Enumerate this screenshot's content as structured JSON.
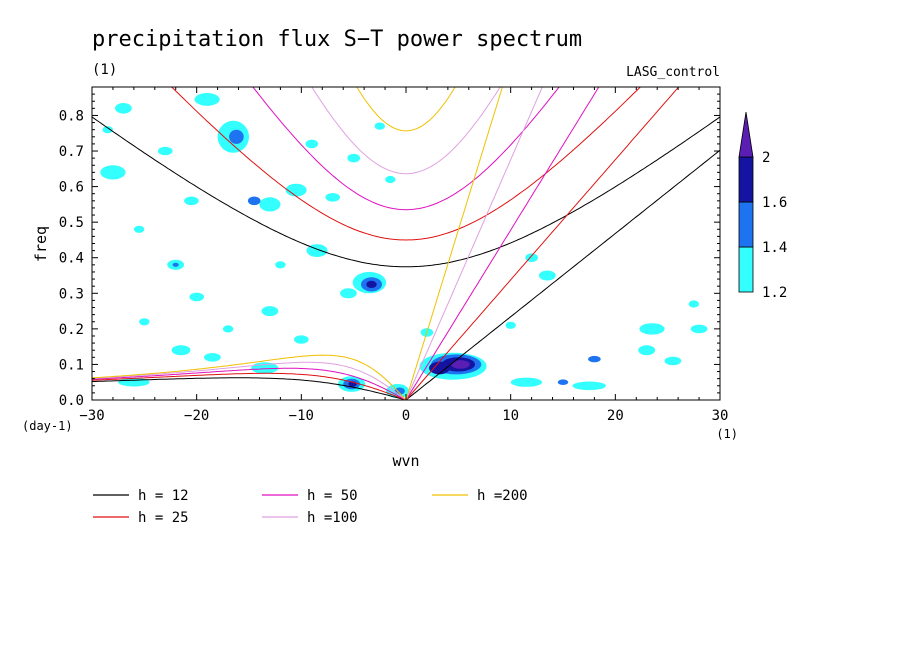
{
  "chart_data": {
    "type": "contour",
    "title": "precipitation flux S−T power spectrum",
    "subtitle_left": "(1)",
    "subtitle_right": "LASG_control",
    "xlabel": "wvn",
    "ylabel": "freq",
    "x_unit_label": "(1)",
    "y_unit_label": "(day-1)",
    "xlim": [
      -30,
      30
    ],
    "ylim": [
      0,
      0.88
    ],
    "xticks": [
      -30,
      -20,
      -10,
      0,
      10,
      20,
      30
    ],
    "xtick_labels": [
      "−30",
      "−20",
      "−10",
      "0",
      "10",
      "20",
      "30"
    ],
    "yticks": [
      0,
      0.1,
      0.2,
      0.3,
      0.4,
      0.5,
      0.6,
      0.7,
      0.8
    ],
    "ytick_labels": [
      "0.0",
      "0.1",
      "0.2",
      "0.3",
      "0.4",
      "0.5",
      "0.6",
      "0.7",
      "0.8"
    ],
    "colorbar": {
      "levels": [
        "1.2",
        "1.4",
        "1.6",
        "2"
      ],
      "colors": [
        "#33ffff",
        "#1e74f0",
        "#1414a0",
        "#5a1eb4"
      ]
    },
    "dispersion_curves": [
      {
        "label": "h = 12",
        "h": 12,
        "color": "#000000"
      },
      {
        "label": "h = 25",
        "h": 25,
        "color": "#e01010"
      },
      {
        "label": "h = 50",
        "h": 50,
        "color": "#e010c0"
      },
      {
        "label": "h =100",
        "h": 100,
        "color": "#e0a0e0"
      },
      {
        "label": "h =200",
        "h": 200,
        "color": "#f0c000"
      }
    ],
    "blobs": [
      {
        "x": 4.5,
        "y": 0.095,
        "rx": 3.2,
        "ry": 0.038,
        "level": 0
      },
      {
        "x": 4.8,
        "y": 0.1,
        "rx": 2.4,
        "ry": 0.028,
        "level": 1
      },
      {
        "x": 5.0,
        "y": 0.1,
        "rx": 1.6,
        "ry": 0.02,
        "level": 2
      },
      {
        "x": 5.2,
        "y": 0.1,
        "rx": 0.9,
        "ry": 0.012,
        "level": 3
      },
      {
        "x": 3.2,
        "y": 0.09,
        "rx": 1.0,
        "ry": 0.018,
        "level": 2
      },
      {
        "x": -5.2,
        "y": 0.045,
        "rx": 1.3,
        "ry": 0.022,
        "level": 0
      },
      {
        "x": -5.2,
        "y": 0.045,
        "rx": 0.8,
        "ry": 0.015,
        "level": 1
      },
      {
        "x": -5.1,
        "y": 0.045,
        "rx": 0.4,
        "ry": 0.008,
        "level": 2
      },
      {
        "x": -0.8,
        "y": 0.025,
        "rx": 1.1,
        "ry": 0.02,
        "level": 0
      },
      {
        "x": -0.6,
        "y": 0.025,
        "rx": 0.5,
        "ry": 0.01,
        "level": 1
      },
      {
        "x": -3.5,
        "y": 0.33,
        "rx": 1.6,
        "ry": 0.03,
        "level": 0
      },
      {
        "x": -3.3,
        "y": 0.325,
        "rx": 1.0,
        "ry": 0.02,
        "level": 1
      },
      {
        "x": -3.3,
        "y": 0.325,
        "rx": 0.5,
        "ry": 0.01,
        "level": 2
      },
      {
        "x": -16.5,
        "y": 0.74,
        "rx": 1.5,
        "ry": 0.045,
        "level": 0
      },
      {
        "x": -16.2,
        "y": 0.74,
        "rx": 0.7,
        "ry": 0.02,
        "level": 1
      },
      {
        "x": -19.0,
        "y": 0.845,
        "rx": 1.2,
        "ry": 0.018,
        "level": 0
      },
      {
        "x": -13.0,
        "y": 0.55,
        "rx": 1.0,
        "ry": 0.02,
        "level": 0
      },
      {
        "x": -10.5,
        "y": 0.59,
        "rx": 1.0,
        "ry": 0.018,
        "level": 0
      },
      {
        "x": -14.5,
        "y": 0.56,
        "rx": 0.6,
        "ry": 0.012,
        "level": 1
      },
      {
        "x": -28.0,
        "y": 0.64,
        "rx": 1.2,
        "ry": 0.02,
        "level": 0
      },
      {
        "x": -27.0,
        "y": 0.82,
        "rx": 0.8,
        "ry": 0.015,
        "level": 0
      },
      {
        "x": -8.5,
        "y": 0.42,
        "rx": 1.0,
        "ry": 0.018,
        "level": 0
      },
      {
        "x": -22.0,
        "y": 0.38,
        "rx": 0.8,
        "ry": 0.014,
        "level": 0
      },
      {
        "x": -22.0,
        "y": 0.38,
        "rx": 0.3,
        "ry": 0.006,
        "level": 1
      },
      {
        "x": -13.0,
        "y": 0.25,
        "rx": 0.8,
        "ry": 0.014,
        "level": 0
      },
      {
        "x": -21.5,
        "y": 0.14,
        "rx": 0.9,
        "ry": 0.014,
        "level": 0
      },
      {
        "x": -18.5,
        "y": 0.12,
        "rx": 0.8,
        "ry": 0.012,
        "level": 0
      },
      {
        "x": -13.5,
        "y": 0.09,
        "rx": 1.3,
        "ry": 0.016,
        "level": 0
      },
      {
        "x": -26.0,
        "y": 0.05,
        "rx": 1.5,
        "ry": 0.012,
        "level": 0
      },
      {
        "x": 2.0,
        "y": 0.19,
        "rx": 0.6,
        "ry": 0.012,
        "level": 0
      },
      {
        "x": 10.0,
        "y": 0.21,
        "rx": 0.5,
        "ry": 0.01,
        "level": 0
      },
      {
        "x": 11.5,
        "y": 0.05,
        "rx": 1.5,
        "ry": 0.013,
        "level": 0
      },
      {
        "x": 17.5,
        "y": 0.04,
        "rx": 1.6,
        "ry": 0.012,
        "level": 0
      },
      {
        "x": 15.0,
        "y": 0.05,
        "rx": 0.5,
        "ry": 0.008,
        "level": 1
      },
      {
        "x": 18.0,
        "y": 0.115,
        "rx": 0.6,
        "ry": 0.009,
        "level": 1
      },
      {
        "x": 23.0,
        "y": 0.14,
        "rx": 0.8,
        "ry": 0.014,
        "level": 0
      },
      {
        "x": 25.5,
        "y": 0.11,
        "rx": 0.8,
        "ry": 0.012,
        "level": 0
      },
      {
        "x": 23.5,
        "y": 0.2,
        "rx": 1.2,
        "ry": 0.016,
        "level": 0
      },
      {
        "x": 28.0,
        "y": 0.2,
        "rx": 0.8,
        "ry": 0.012,
        "level": 0
      },
      {
        "x": 13.5,
        "y": 0.35,
        "rx": 0.8,
        "ry": 0.014,
        "level": 0
      },
      {
        "x": 12.0,
        "y": 0.4,
        "rx": 0.6,
        "ry": 0.012,
        "level": 0
      },
      {
        "x": 27.5,
        "y": 0.27,
        "rx": 0.5,
        "ry": 0.01,
        "level": 0
      },
      {
        "x": -5.5,
        "y": 0.3,
        "rx": 0.8,
        "ry": 0.014,
        "level": 0
      },
      {
        "x": -9.0,
        "y": 0.72,
        "rx": 0.6,
        "ry": 0.012,
        "level": 0
      },
      {
        "x": -7.0,
        "y": 0.57,
        "rx": 0.7,
        "ry": 0.012,
        "level": 0
      },
      {
        "x": -5.0,
        "y": 0.68,
        "rx": 0.6,
        "ry": 0.012,
        "level": 0
      },
      {
        "x": -1.5,
        "y": 0.62,
        "rx": 0.5,
        "ry": 0.01,
        "level": 0
      },
      {
        "x": -2.5,
        "y": 0.77,
        "rx": 0.5,
        "ry": 0.01,
        "level": 0
      },
      {
        "x": -23.0,
        "y": 0.7,
        "rx": 0.7,
        "ry": 0.012,
        "level": 0
      },
      {
        "x": -20.5,
        "y": 0.56,
        "rx": 0.7,
        "ry": 0.012,
        "level": 0
      },
      {
        "x": -25.5,
        "y": 0.48,
        "rx": 0.5,
        "ry": 0.01,
        "level": 0
      },
      {
        "x": -20.0,
        "y": 0.29,
        "rx": 0.7,
        "ry": 0.012,
        "level": 0
      },
      {
        "x": -25.0,
        "y": 0.22,
        "rx": 0.5,
        "ry": 0.01,
        "level": 0
      },
      {
        "x": -10.0,
        "y": 0.17,
        "rx": 0.7,
        "ry": 0.012,
        "level": 0
      },
      {
        "x": -28.5,
        "y": 0.76,
        "rx": 0.5,
        "ry": 0.01,
        "level": 0
      },
      {
        "x": -12.0,
        "y": 0.38,
        "rx": 0.5,
        "ry": 0.01,
        "level": 0
      },
      {
        "x": -17.0,
        "y": 0.2,
        "rx": 0.5,
        "ry": 0.01,
        "level": 0
      }
    ]
  }
}
